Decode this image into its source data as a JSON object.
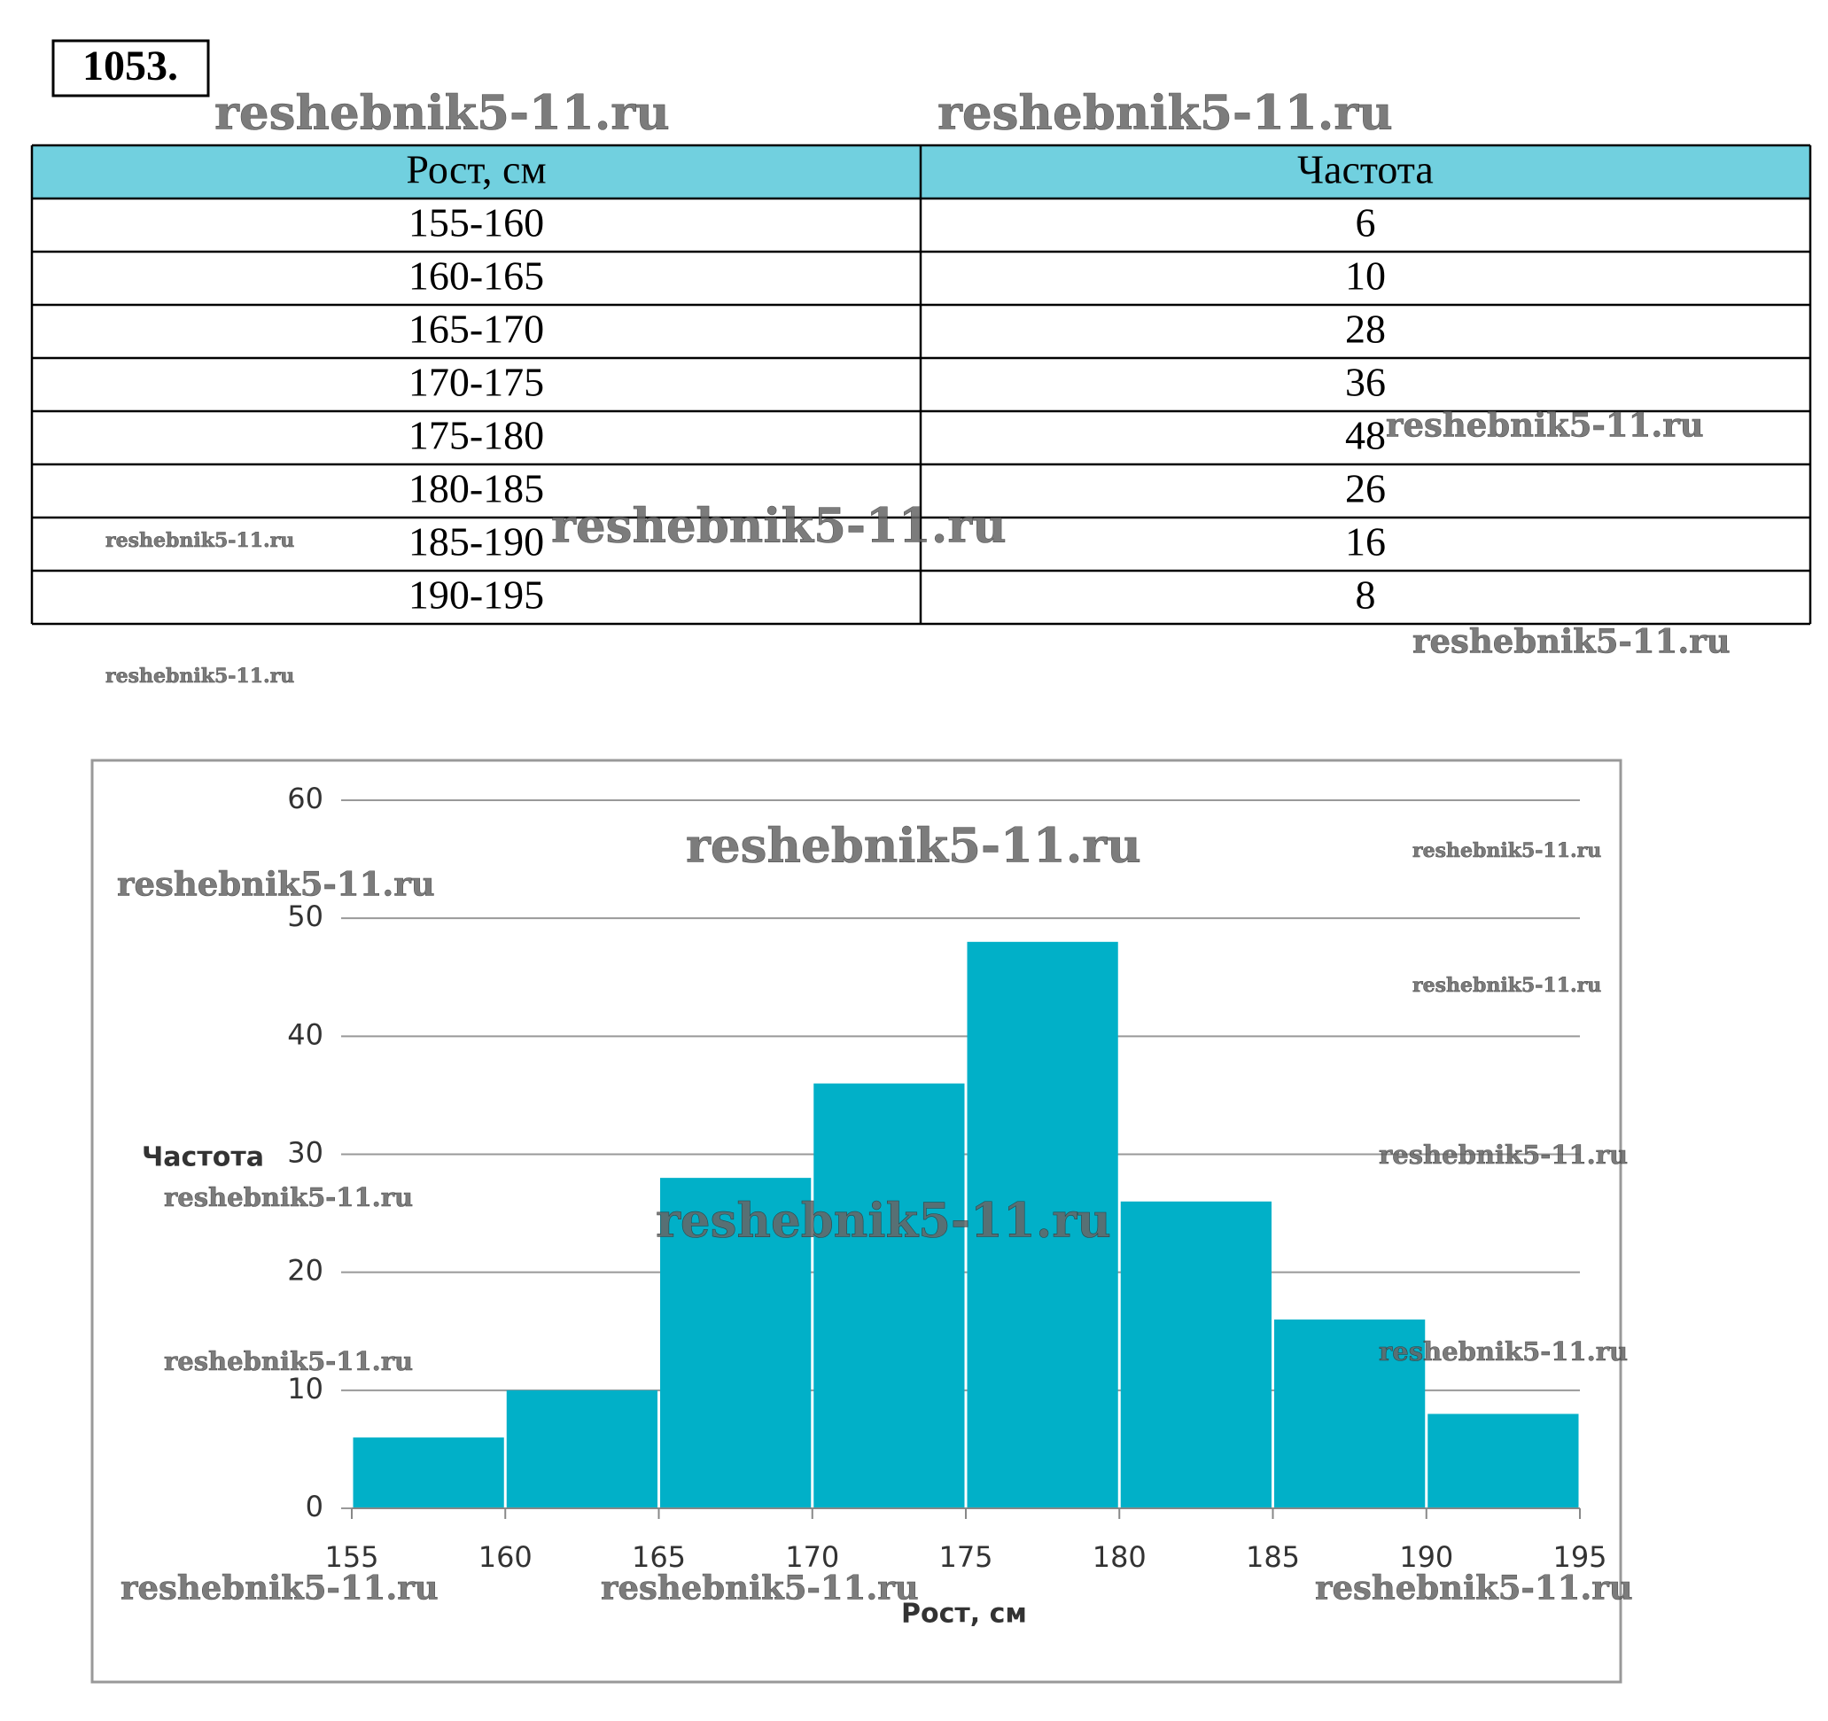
{
  "problem_number": "1053.",
  "table": {
    "header": [
      "Рост, см",
      "Частота"
    ],
    "rows": [
      [
        "155-160",
        6
      ],
      [
        "160-165",
        10
      ],
      [
        "165-170",
        28
      ],
      [
        "170-175",
        36
      ],
      [
        "175-180",
        48
      ],
      [
        "180-185",
        26
      ],
      [
        "185-190",
        16
      ],
      [
        "190-195",
        8
      ]
    ]
  },
  "chart_data": {
    "type": "histogram",
    "xlabel": "Рост, см",
    "ylabel": "Частота",
    "bins": [
      155,
      160,
      165,
      170,
      175,
      180,
      185,
      190,
      195
    ],
    "values": [
      6,
      10,
      28,
      36,
      48,
      26,
      16,
      8
    ],
    "color": "#01b0c8",
    "xlim": [
      155,
      195
    ],
    "xticks": [
      155,
      160,
      165,
      170,
      175,
      180,
      185,
      190,
      195
    ],
    "ylim": [
      0,
      60
    ],
    "yticks": [
      0,
      10,
      20,
      30,
      40,
      50,
      60
    ],
    "grid": true
  },
  "watermarks": [
    "reshebnik5-11.ru",
    "reshebnik5-11.ru",
    "reshebnik5-11.ru",
    "reshebnik5-11.ru",
    "reshebnik5-11.ru",
    "reshebnik5-11.ru",
    "reshebnik5-11.ru",
    "reshebnik5-11.ru",
    "reshebnik5-11.ru",
    "reshebnik5-11.ru",
    "reshebnik5-11.ru",
    "reshebnik5-11.ru",
    "reshebnik5-11.ru",
    "reshebnik5-11.ru",
    "reshebnik5-11.ru",
    "reshebnik5-11.ru",
    "reshebnik5-11.ru",
    "reshebnik5-11.ru",
    "reshebnik5-11.ru"
  ]
}
